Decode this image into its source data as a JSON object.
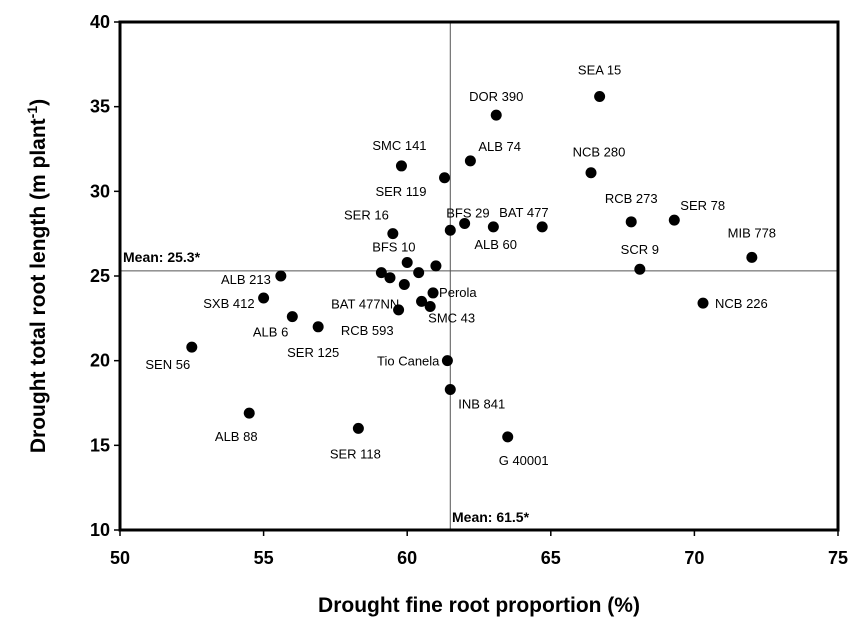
{
  "chart_data": {
    "type": "scatter",
    "xlabel": "Drought fine root proportion (%)",
    "ylabel_main": "Drought total root length (m plant",
    "ylabel_sup": "-1",
    "ylabel_close": ")",
    "xlim": [
      50,
      75
    ],
    "ylim": [
      10,
      40
    ],
    "xticks": [
      50,
      55,
      60,
      65,
      70,
      75
    ],
    "yticks": [
      10,
      15,
      20,
      25,
      30,
      35,
      40
    ],
    "grid": false,
    "ref_lines": {
      "x_mean": 61.5,
      "y_mean": 25.3,
      "x_mean_label": "Mean: 61.5*",
      "y_mean_label": "Mean: 25.3*"
    },
    "points": [
      {
        "label": "SEA 15",
        "x": 66.7,
        "y": 35.6,
        "pos": "above"
      },
      {
        "label": "DOR 390",
        "x": 63.1,
        "y": 34.5,
        "pos": "above"
      },
      {
        "label": "SMC 141",
        "x": 59.8,
        "y": 31.5,
        "pos": "above"
      },
      {
        "label": "ALB 74",
        "x": 62.2,
        "y": 31.8,
        "pos": "right"
      },
      {
        "label": "NCB 280",
        "x": 66.4,
        "y": 31.1,
        "pos": "above"
      },
      {
        "label": "SER 119",
        "x": 61.3,
        "y": 30.8,
        "pos": "below-left"
      },
      {
        "label": "SER 16",
        "x": 59.5,
        "y": 27.5,
        "pos": "above-left"
      },
      {
        "label": "BFS 29",
        "x": 61.5,
        "y": 27.7,
        "pos": "none"
      },
      {
        "label": "",
        "x": 62.0,
        "y": 28.1,
        "pos": "none"
      },
      {
        "label": "ALB 60",
        "x": 63.0,
        "y": 27.9,
        "pos": "below"
      },
      {
        "label": "BAT 477",
        "x": 64.7,
        "y": 27.9,
        "pos": "none"
      },
      {
        "label": "RCB 273",
        "x": 67.8,
        "y": 28.2,
        "pos": "none"
      },
      {
        "label": "SER 78",
        "x": 69.3,
        "y": 28.3,
        "pos": "right"
      },
      {
        "label": "MIB 778",
        "x": 72.0,
        "y": 26.1,
        "pos": "none"
      },
      {
        "label": "SCR 9",
        "x": 68.1,
        "y": 25.4,
        "pos": "none"
      },
      {
        "label": "NCB 226",
        "x": 70.3,
        "y": 23.4,
        "pos": "right"
      },
      {
        "label": "BFS 10",
        "x": 60.0,
        "y": 25.8,
        "pos": "none"
      },
      {
        "label": "",
        "x": 59.1,
        "y": 25.2,
        "pos": "none"
      },
      {
        "label": "",
        "x": 60.4,
        "y": 25.2,
        "pos": "none"
      },
      {
        "label": "",
        "x": 61.0,
        "y": 25.6,
        "pos": "none"
      },
      {
        "label": "",
        "x": 59.4,
        "y": 24.9,
        "pos": "none"
      },
      {
        "label": "BAT 477NN",
        "x": 59.9,
        "y": 24.5,
        "pos": "none"
      },
      {
        "label": "Perola",
        "x": 60.9,
        "y": 24.0,
        "pos": "right"
      },
      {
        "label": "",
        "x": 60.5,
        "y": 23.5,
        "pos": "none"
      },
      {
        "label": "SMC 43",
        "x": 60.8,
        "y": 23.2,
        "pos": "none"
      },
      {
        "label": "RCB 593",
        "x": 59.7,
        "y": 23.0,
        "pos": "none"
      },
      {
        "label": "ALB 213",
        "x": 55.6,
        "y": 25.0,
        "pos": "left"
      },
      {
        "label": "SXB 412",
        "x": 55.0,
        "y": 23.7,
        "pos": "left"
      },
      {
        "label": "ALB 6",
        "x": 56.0,
        "y": 22.6,
        "pos": "none"
      },
      {
        "label": "SER 125",
        "x": 56.9,
        "y": 22.0,
        "pos": "none"
      },
      {
        "label": "SEN 56",
        "x": 52.5,
        "y": 20.8,
        "pos": "below-left"
      },
      {
        "label": "Tio Canela",
        "x": 61.4,
        "y": 20.0,
        "pos": "left"
      },
      {
        "label": "INB 841",
        "x": 61.5,
        "y": 18.3,
        "pos": "none"
      },
      {
        "label": "ALB 88",
        "x": 54.5,
        "y": 16.9,
        "pos": "below"
      },
      {
        "label": "SER 118",
        "x": 58.3,
        "y": 16.0,
        "pos": "below"
      },
      {
        "label": "G 40001",
        "x": 63.5,
        "y": 15.5,
        "pos": "none"
      }
    ]
  }
}
